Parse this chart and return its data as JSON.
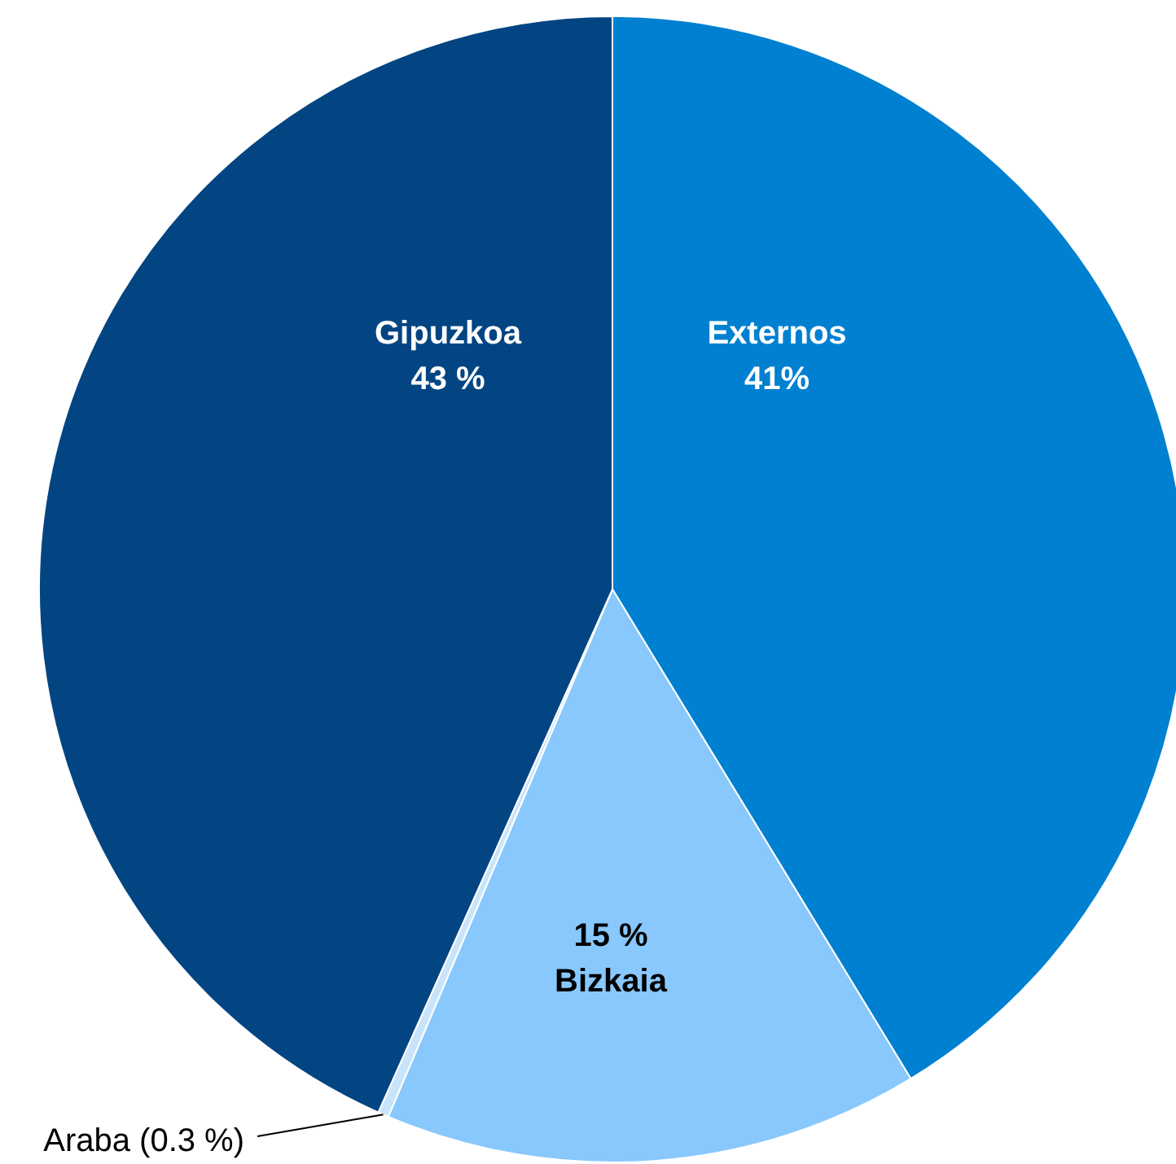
{
  "chart_data": {
    "type": "pie",
    "categories": [
      "Externos",
      "Bizkaia",
      "Araba",
      "Gipuzkoa"
    ],
    "values": [
      41,
      15,
      0.3,
      43
    ],
    "colors": [
      "#0080d0",
      "#88c8fc",
      "#c8e4fa",
      "#034582"
    ],
    "value_labels": [
      "41%",
      "15 %",
      "(0.3 %)",
      "43 %"
    ]
  }
}
